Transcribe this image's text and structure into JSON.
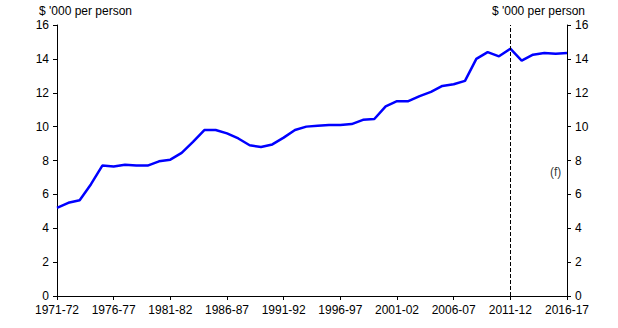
{
  "chart_data": {
    "type": "line",
    "y_label": "$ '000 per person",
    "y2_label": "$ '000 per person",
    "categories": [
      "1971-72",
      null,
      null,
      null,
      null,
      "1976-77",
      null,
      null,
      null,
      null,
      "1981-82",
      null,
      null,
      null,
      null,
      "1986-87",
      null,
      null,
      null,
      null,
      "1991-92",
      null,
      null,
      null,
      null,
      "1996-97",
      null,
      null,
      null,
      null,
      "2001-02",
      null,
      null,
      null,
      null,
      "2006-07",
      null,
      null,
      null,
      null,
      "2011-12",
      null,
      null,
      null,
      null,
      "2016-17"
    ],
    "values": [
      5.2,
      5.5,
      5.65,
      6.6,
      7.7,
      7.65,
      7.75,
      7.7,
      7.7,
      7.95,
      8.05,
      8.45,
      9.1,
      9.8,
      9.8,
      9.6,
      9.3,
      8.9,
      8.8,
      8.95,
      9.35,
      9.8,
      10.0,
      10.05,
      10.1,
      10.1,
      10.15,
      10.4,
      10.45,
      11.2,
      11.5,
      11.5,
      11.8,
      12.05,
      12.4,
      12.5,
      12.7,
      14.0,
      14.4,
      14.15,
      14.6,
      13.9,
      14.25,
      14.35,
      14.3,
      14.35
    ],
    "color": "#0000ff",
    "ylim": [
      0,
      16
    ],
    "yticks": [
      0,
      2,
      4,
      6,
      8,
      10,
      12,
      14,
      16
    ],
    "y2lim": [
      0,
      16
    ],
    "y2ticks": [
      0,
      2,
      4,
      6,
      8,
      10,
      12,
      14,
      16
    ],
    "grid": false,
    "reference_line": {
      "x_index": 40,
      "line_style": "dashed"
    },
    "annotations": [
      {
        "text": "(f)",
        "x_index": 44,
        "y": 7.3
      }
    ]
  }
}
